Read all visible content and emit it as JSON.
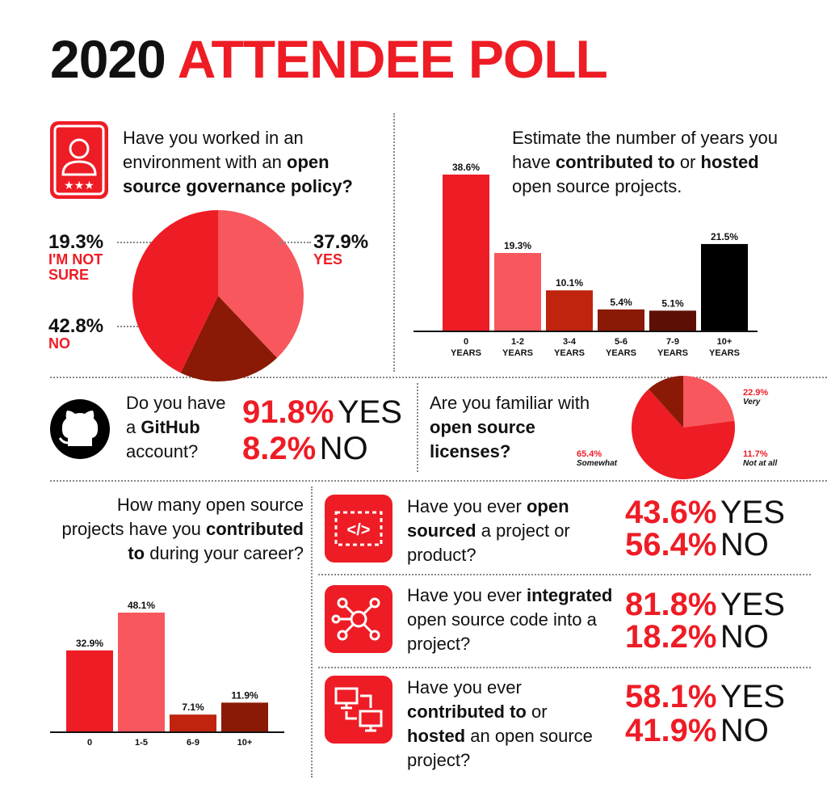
{
  "title": {
    "year": "2020",
    "rest": "ATTENDEE POLL"
  },
  "q1": {
    "text_pre": "Have you worked in an environment with an ",
    "text_bold": "open source governance policy?",
    "labels": {
      "yes_pct": "37.9%",
      "yes_txt": "YES",
      "notsure_pct": "19.3%",
      "notsure_txt": "I'M NOT SURE",
      "no_pct": "42.8%",
      "no_txt": "NO"
    }
  },
  "q2": {
    "text_pre": "Estimate the number of years you have ",
    "text_bold1": "contributed to",
    "text_mid": " or ",
    "text_bold2": "hosted",
    "text_post": " open source projects."
  },
  "q3": {
    "text_pre": "Do you have a ",
    "text_bold": "GitHub",
    "text_post": " account?",
    "yes_pct": "91.8%",
    "yes_txt": "YES",
    "no_pct": "8.2%",
    "no_txt": "NO"
  },
  "q4": {
    "text_pre": "Are you familiar with ",
    "text_bold": "open source licenses?",
    "very_pct": "22.9%",
    "very_txt": "Very",
    "some_pct": "65.4%",
    "some_txt": "Somewhat",
    "notall_pct": "11.7%",
    "notall_txt": "Not at all"
  },
  "q5": {
    "text_pre": "How many open source projects have you ",
    "text_bold": "contributed to",
    "text_post": " during your career?"
  },
  "q6": {
    "text_pre": "Have you ever ",
    "text_bold": "open sourced",
    "text_post": " a project or product?",
    "yes_pct": "43.6%",
    "yes_txt": "YES",
    "no_pct": "56.4%",
    "no_txt": "NO"
  },
  "q7": {
    "text_pre": "Have you ever ",
    "text_bold": "integrated",
    "text_post": " open source code into a project?",
    "yes_pct": "81.8%",
    "yes_txt": "YES",
    "no_pct": "18.2%",
    "no_txt": "NO"
  },
  "q8": {
    "text_pre": "Have you ever ",
    "text_bold1": "contributed to",
    "text_mid": " or ",
    "text_bold2": "hosted",
    "text_post": " an open source project?",
    "yes_pct": "58.1%",
    "yes_txt": "YES",
    "no_pct": "41.9%",
    "no_txt": "NO"
  },
  "icons": {
    "q1": "user-badge-icon",
    "q3": "github-icon",
    "q6": "code-window-icon",
    "q7": "network-hub-icon",
    "q8": "connected-computers-icon"
  },
  "colors": {
    "red": "#ee1c25",
    "pink": "#f7575d",
    "rust": "#c0240f",
    "brown": "#8a1a05",
    "darkbrown": "#5c0f05",
    "black": "#000000"
  },
  "chart_data": [
    {
      "type": "pie",
      "categories": [
        "YES",
        "I'M NOT SURE",
        "NO"
      ],
      "values": [
        37.9,
        19.3,
        42.8
      ],
      "colors": [
        "#f7575d",
        "#8a1a05",
        "#ee1c25"
      ]
    },
    {
      "type": "bar",
      "categories": [
        "0 YEARS",
        "1-2 YEARS",
        "3-4 YEARS",
        "5-6 YEARS",
        "7-9 YEARS",
        "10+ YEARS"
      ],
      "values": [
        38.6,
        19.3,
        10.1,
        5.4,
        5.1,
        21.5
      ],
      "labels": [
        "38.6%",
        "19.3%",
        "10.1%",
        "5.4%",
        "5.1%",
        "21.5%"
      ],
      "colors": [
        "#ee1c25",
        "#f7575d",
        "#c0240f",
        "#8a1a05",
        "#5c0f05",
        "#000000"
      ],
      "ylim": [
        0,
        38.6
      ]
    },
    {
      "type": "pie",
      "categories": [
        "Very",
        "Somewhat",
        "Not at all"
      ],
      "values": [
        22.9,
        65.4,
        11.7
      ],
      "colors": [
        "#f7575d",
        "#ee1c25",
        "#8a1a05"
      ]
    },
    {
      "type": "bar",
      "categories": [
        "0",
        "1-5",
        "6-9",
        "10+"
      ],
      "values": [
        32.9,
        48.1,
        7.1,
        11.9
      ],
      "labels": [
        "32.9%",
        "48.1%",
        "7.1%",
        "11.9%"
      ],
      "colors": [
        "#ee1c25",
        "#f7575d",
        "#c0240f",
        "#8a1a05"
      ],
      "ylim": [
        0,
        48.1
      ]
    }
  ]
}
